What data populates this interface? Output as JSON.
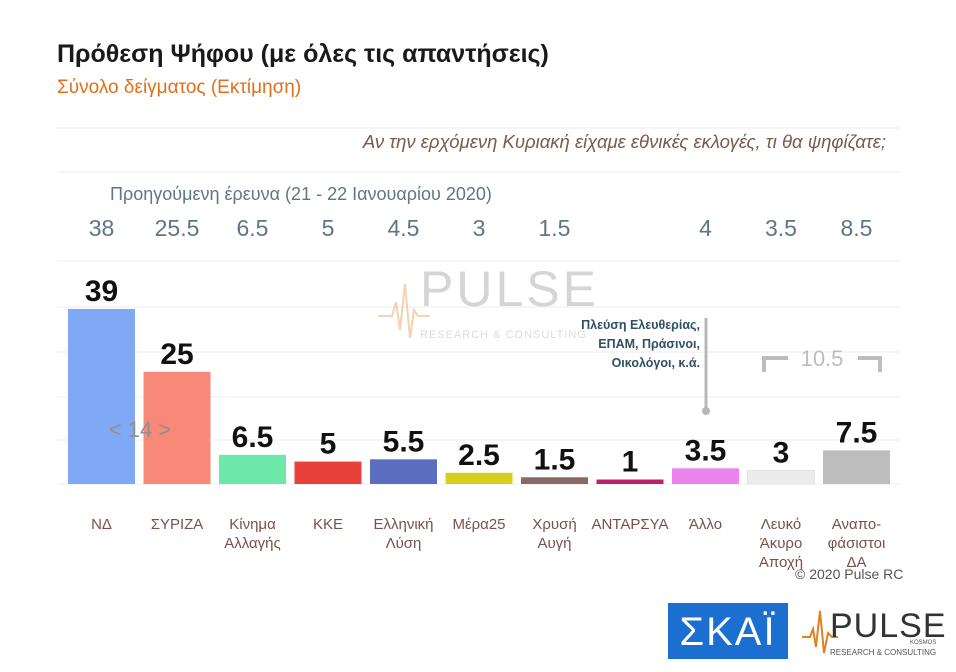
{
  "header": {
    "title": "Πρόθεση Ψήφου (με όλες τις απαντήσεις)",
    "subtitle": "Σύνολο δείγματος   (Εκτίμηση)",
    "question": "Αν την ερχόμενη Κυριακή είχαμε εθνικές εκλογές, τι θα ψηφίζατε;",
    "previous_survey_label": "Προηγούμενη έρευνα  (21 - 22 Ιανουαρίου  2020)"
  },
  "chart_data": {
    "type": "bar",
    "categories": [
      "ΝΔ",
      "ΣΥΡΙΖΑ",
      "Κίνημα\nΑλλαγής",
      "ΚΚΕ",
      "Ελληνική\nΛύση",
      "Μέρα25",
      "Χρυσή\nΑυγή",
      "ΑΝΤΑΡΣΥΑ",
      "Άλλο",
      "Λευκό\nΆκυρο\nΑποχή",
      "Αναπο-\nφάσιστοι\nΔΑ"
    ],
    "values": [
      39,
      25,
      6.5,
      5,
      5.5,
      2.5,
      1.5,
      1,
      3.5,
      3,
      7.5
    ],
    "value_labels": [
      "39",
      "25",
      "6.5",
      "5",
      "5.5",
      "2.5",
      "1.5",
      "1",
      "3.5",
      "3",
      "7.5"
    ],
    "previous_values": [
      "38",
      "25.5",
      "6.5",
      "5",
      "4.5",
      "3",
      "1.5",
      "",
      "4",
      "3.5",
      "8.5"
    ],
    "colors": [
      "#7fa8f5",
      "#f88878",
      "#6ee8a8",
      "#e8403a",
      "#5b6ec0",
      "#d6cf1e",
      "#8a6a66",
      "#c01f6a",
      "#ea84ea",
      "#ececec",
      "#bdbdbd"
    ],
    "annotations": {
      "gap_label": "< 14 >",
      "other_parties_note": [
        "Πλεύση Ελευθερίας,",
        "ΕΠΑΜ, Πράσινοι,",
        "Οικολόγοι, κ.ά."
      ],
      "bracket_label": "10.5"
    },
    "ylim": [
      0,
      40
    ]
  },
  "footer": {
    "copyright": "© 2020 Pulse RC"
  },
  "watermark": {
    "brand": "PULSE",
    "sub": "RESEARCH & CONSULTING"
  },
  "logos": {
    "broadcaster": "ΣΚΑΪ",
    "pollster": "PULSE",
    "pollster_sub": "RESEARCH & CONSULTING",
    "pollster_tag": "KOSMOS"
  }
}
